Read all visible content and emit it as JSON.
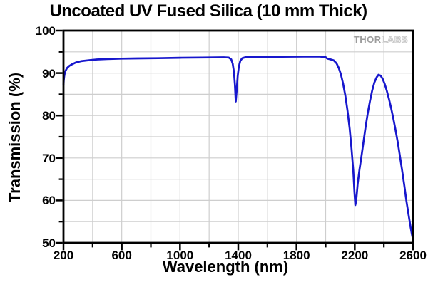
{
  "title": "Uncoated UV Fused Silica (10 mm Thick)",
  "watermark": {
    "part1": "THOR",
    "part2": "LABS"
  },
  "colors": {
    "curve": "#1717cd",
    "grid": "#cecece",
    "axis": "#000000",
    "background": "#ffffff",
    "watermark_solid": "#9c9c9c",
    "watermark_outline": "#c6c6c6"
  },
  "chart_data": {
    "type": "line",
    "title": "Uncoated UV Fused Silica (10 mm Thick)",
    "xlabel": "Wavelength (nm)",
    "ylabel": "Transmission (%)",
    "xlim": [
      200,
      2600
    ],
    "ylim": [
      50,
      100
    ],
    "x_major_ticks": [
      200,
      600,
      1000,
      1400,
      1800,
      2200,
      2600
    ],
    "x_minor_ticks": [
      400,
      800,
      1200,
      1600,
      2000,
      2400
    ],
    "y_major_ticks": [
      50,
      60,
      70,
      80,
      90,
      100
    ],
    "y_minor_ticks": [
      55,
      65,
      75,
      85,
      95
    ],
    "grid": true,
    "legend": "none",
    "series": [
      {
        "name": "transmission",
        "points": [
          [
            200,
            87.2
          ],
          [
            202,
            88.3
          ],
          [
            205,
            89.2
          ],
          [
            209,
            90.0
          ],
          [
            215,
            90.6
          ],
          [
            225,
            91.2
          ],
          [
            240,
            91.7
          ],
          [
            260,
            92.1
          ],
          [
            285,
            92.5
          ],
          [
            320,
            92.8
          ],
          [
            370,
            93.0
          ],
          [
            430,
            93.2
          ],
          [
            500,
            93.3
          ],
          [
            600,
            93.4
          ],
          [
            700,
            93.45
          ],
          [
            850,
            93.5
          ],
          [
            1000,
            93.6
          ],
          [
            1150,
            93.65
          ],
          [
            1300,
            93.7
          ],
          [
            1335,
            93.65
          ],
          [
            1352,
            93.2
          ],
          [
            1362,
            92.2
          ],
          [
            1370,
            90.3
          ],
          [
            1377,
            87.3
          ],
          [
            1383,
            83.3
          ],
          [
            1389,
            86.0
          ],
          [
            1396,
            89.3
          ],
          [
            1404,
            91.5
          ],
          [
            1414,
            92.9
          ],
          [
            1428,
            93.5
          ],
          [
            1450,
            93.75
          ],
          [
            1550,
            93.8
          ],
          [
            1700,
            93.85
          ],
          [
            1850,
            93.9
          ],
          [
            1960,
            93.9
          ],
          [
            2000,
            93.75
          ],
          [
            2012,
            93.4
          ],
          [
            2030,
            93.25
          ],
          [
            2055,
            93.0
          ],
          [
            2075,
            92.3
          ],
          [
            2090,
            91.2
          ],
          [
            2105,
            89.7
          ],
          [
            2120,
            87.5
          ],
          [
            2135,
            84.7
          ],
          [
            2150,
            81.2
          ],
          [
            2165,
            76.9
          ],
          [
            2178,
            72.2
          ],
          [
            2190,
            66.9
          ],
          [
            2198,
            62.0
          ],
          [
            2204,
            58.9
          ],
          [
            2210,
            60.0
          ],
          [
            2220,
            63.9
          ],
          [
            2232,
            67.2
          ],
          [
            2245,
            70.1
          ],
          [
            2260,
            73.8
          ],
          [
            2275,
            77.4
          ],
          [
            2290,
            80.7
          ],
          [
            2305,
            83.5
          ],
          [
            2320,
            85.9
          ],
          [
            2335,
            87.8
          ],
          [
            2350,
            89.0
          ],
          [
            2363,
            89.6
          ],
          [
            2378,
            89.4
          ],
          [
            2392,
            88.6
          ],
          [
            2406,
            87.4
          ],
          [
            2420,
            85.8
          ],
          [
            2435,
            83.9
          ],
          [
            2450,
            81.7
          ],
          [
            2465,
            79.3
          ],
          [
            2480,
            76.6
          ],
          [
            2495,
            73.7
          ],
          [
            2510,
            70.5
          ],
          [
            2525,
            67.1
          ],
          [
            2540,
            63.5
          ],
          [
            2555,
            59.8
          ],
          [
            2570,
            56.5
          ],
          [
            2583,
            53.8
          ],
          [
            2593,
            51.9
          ],
          [
            2600,
            50.8
          ]
        ]
      }
    ]
  }
}
